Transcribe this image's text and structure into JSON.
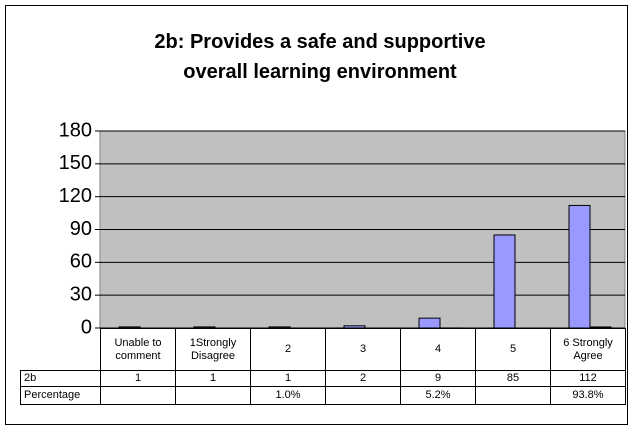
{
  "chart_data": {
    "type": "bar",
    "title": "2b: Provides a safe and supportive overall learning environment",
    "categories": [
      "Unable to comment",
      "1Strongly Disagree",
      "2",
      "3",
      "4",
      "5",
      "6 Strongly Agree"
    ],
    "series": [
      {
        "name": "2b",
        "color": "#9999ff",
        "values": [
          1,
          1,
          1,
          2,
          9,
          85,
          112
        ]
      },
      {
        "name": "Percentage",
        "color": "#333333",
        "values": [
          null,
          null,
          0.01,
          null,
          0.052,
          null,
          0.938
        ],
        "value_labels": [
          null,
          null,
          "1.0%",
          null,
          "5.2%",
          null,
          "93.8%"
        ]
      }
    ],
    "ylim": [
      0,
      180
    ],
    "yticks": [
      0,
      30,
      60,
      90,
      120,
      150,
      180
    ],
    "grid": true
  }
}
